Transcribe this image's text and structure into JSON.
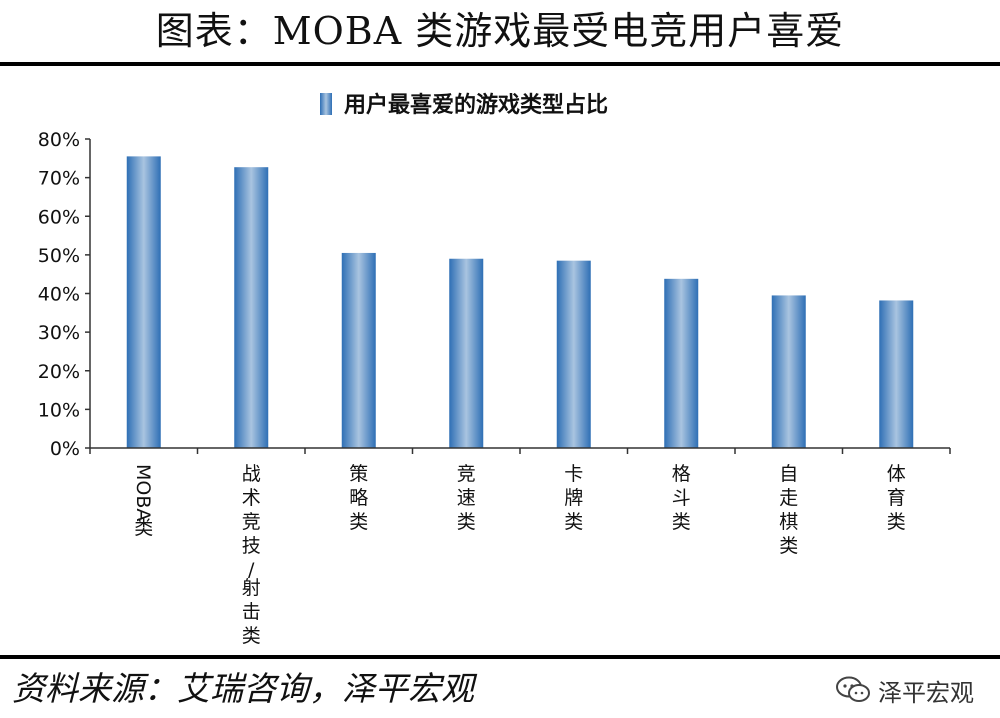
{
  "header": {
    "title": "图表：MOBA 类游戏最受电竞用户喜爱"
  },
  "footer": {
    "source": "资料来源：艾瑞咨询，泽平宏观",
    "brand": "泽平宏观",
    "brand_icon": "wechat-icon"
  },
  "colors": {
    "bar_edge": "#2e6fb5",
    "bar_center": "#a9c4e0",
    "axis": "#333333",
    "text": "#111111"
  },
  "chart_data": {
    "type": "bar",
    "legend_position": "top",
    "grid": false,
    "categories": [
      "MOBA类",
      "战术竞技/射击类",
      "策略类",
      "竞速类",
      "卡牌类",
      "格斗类",
      "自走棋类",
      "体育类"
    ],
    "series": [
      {
        "name": "用户最喜爱的游戏类型占比",
        "values": [
          75.5,
          72.7,
          50.5,
          49.0,
          48.5,
          43.8,
          39.5,
          38.2
        ]
      }
    ],
    "yticks": [
      "0%",
      "10%",
      "20%",
      "30%",
      "40%",
      "50%",
      "60%",
      "70%",
      "80%"
    ],
    "ylim": [
      0,
      80
    ]
  }
}
